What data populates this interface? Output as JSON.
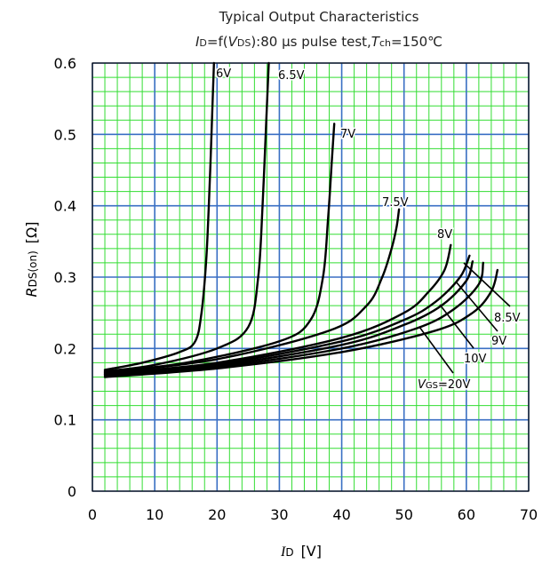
{
  "chart_data": {
    "type": "line",
    "title": "Typical Output Characteristics",
    "subtitle": {
      "i": "I",
      "i_sub": "D",
      "func": "=f(",
      "v": "V",
      "v_sub": "DS",
      "cond": "):80 μs pulse test,",
      "t": "T",
      "t_sub": "ch",
      "temp": "=150℃"
    },
    "xlabel": {
      "main": "I",
      "sub": "D",
      "unit": "[V]"
    },
    "ylabel": {
      "main": "R",
      "sub": "DS(on)",
      "unit": "[Ω]"
    },
    "xlim": [
      0,
      70
    ],
    "ylim": [
      0,
      0.6
    ],
    "x_ticks": [
      "0",
      "10",
      "20",
      "30",
      "40",
      "50",
      "60",
      "70"
    ],
    "y_ticks": [
      "0",
      "0.1",
      "0.2",
      "0.3",
      "0.4",
      "0.5",
      "0.6"
    ],
    "grid": true,
    "colors": {
      "minor_grid": "#33dd33",
      "major_grid": "#3a6fc4",
      "curve": "#000000",
      "frame": "#000000"
    },
    "series": [
      {
        "name": "6V",
        "label": "6V",
        "x": [
          2,
          8,
          14,
          16.5,
          17.5,
          18.3,
          18.9,
          19.3,
          19.5
        ],
        "y": [
          0.17,
          0.18,
          0.195,
          0.21,
          0.25,
          0.33,
          0.45,
          0.55,
          0.6
        ]
      },
      {
        "name": "6.5V",
        "label": "6.5V",
        "x": [
          2,
          10,
          20,
          25,
          26.6,
          27.3,
          27.9,
          28.3
        ],
        "y": [
          0.168,
          0.177,
          0.2,
          0.23,
          0.3,
          0.4,
          0.52,
          0.6
        ]
      },
      {
        "name": "7V",
        "label": "7V",
        "x": [
          2,
          15,
          30,
          35,
          37,
          37.8,
          38.4,
          38.8
        ],
        "y": [
          0.167,
          0.18,
          0.21,
          0.24,
          0.3,
          0.38,
          0.46,
          0.515
        ]
      },
      {
        "name": "7.5V",
        "label": "7.5V",
        "x": [
          2,
          20,
          38,
          44,
          46.5,
          48,
          48.8,
          49.2
        ],
        "y": [
          0.166,
          0.185,
          0.225,
          0.26,
          0.3,
          0.34,
          0.37,
          0.395
        ]
      },
      {
        "name": "8V",
        "label": "8V",
        "x": [
          2,
          20,
          40,
          50,
          54,
          56.5,
          57.5
        ],
        "y": [
          0.165,
          0.18,
          0.215,
          0.25,
          0.28,
          0.31,
          0.345
        ]
      },
      {
        "name": "8.5V",
        "label": "8.5V",
        "x": [
          2,
          20,
          40,
          50,
          55,
          59,
          60.5
        ],
        "y": [
          0.164,
          0.178,
          0.21,
          0.24,
          0.265,
          0.3,
          0.33
        ]
      },
      {
        "name": "9V",
        "label": "9V",
        "x": [
          2,
          20,
          40,
          50,
          56,
          60,
          61
        ],
        "y": [
          0.163,
          0.176,
          0.205,
          0.233,
          0.26,
          0.295,
          0.322
        ]
      },
      {
        "name": "10V",
        "label": "10V",
        "x": [
          2,
          20,
          40,
          52,
          58,
          62,
          62.7
        ],
        "y": [
          0.162,
          0.174,
          0.2,
          0.228,
          0.255,
          0.29,
          0.32
        ]
      },
      {
        "name": "20V",
        "label": "=20V",
        "label_prefix": "V",
        "label_sub": "GS",
        "x": [
          2,
          20,
          40,
          55,
          61,
          64,
          65
        ],
        "y": [
          0.16,
          0.172,
          0.195,
          0.225,
          0.25,
          0.28,
          0.31
        ]
      }
    ]
  }
}
